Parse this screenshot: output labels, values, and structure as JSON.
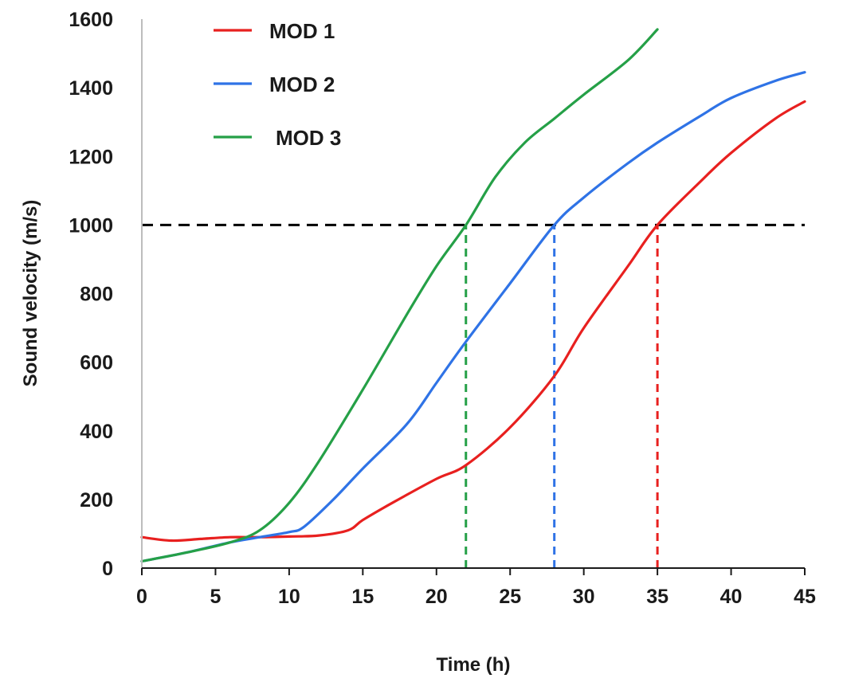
{
  "chart_data": {
    "type": "line",
    "xlabel": "Time (h)",
    "ylabel": "Sound velocity (m/s)",
    "xlim": [
      0,
      45
    ],
    "ylim": [
      0,
      1600
    ],
    "xticks": [
      0,
      5,
      10,
      15,
      20,
      25,
      30,
      35,
      40,
      45
    ],
    "yticks": [
      0,
      200,
      400,
      600,
      800,
      1000,
      1200,
      1400,
      1600
    ],
    "grid": false,
    "legend_position": "top-left",
    "series": [
      {
        "name": "MOD 1",
        "color": "#e8201f",
        "x": [
          0,
          2,
          4,
          6,
          8,
          10,
          12,
          14,
          15,
          17,
          20,
          22,
          25,
          28,
          30,
          33,
          35,
          38,
          40,
          43,
          45
        ],
        "y": [
          90,
          80,
          85,
          90,
          90,
          92,
          95,
          110,
          140,
          190,
          260,
          300,
          410,
          560,
          700,
          880,
          1000,
          1130,
          1210,
          1310,
          1360
        ]
      },
      {
        "name": "MOD 2",
        "color": "#2f73e6",
        "x": [
          0,
          3,
          6,
          8,
          10,
          11,
          13,
          15,
          18,
          20,
          22,
          25,
          28,
          30,
          33,
          35,
          38,
          40,
          43,
          45
        ],
        "y": [
          20,
          45,
          75,
          90,
          105,
          120,
          200,
          290,
          420,
          540,
          660,
          830,
          1000,
          1080,
          1180,
          1240,
          1320,
          1370,
          1420,
          1445
        ]
      },
      {
        "name": "MOD 3",
        "color": "#25a047",
        "x": [
          0,
          3,
          6,
          8,
          10,
          12,
          15,
          18,
          20,
          22,
          24,
          26,
          28,
          30,
          33,
          35
        ],
        "y": [
          20,
          45,
          75,
          110,
          190,
          310,
          520,
          740,
          880,
          1000,
          1140,
          1240,
          1310,
          1380,
          1480,
          1570
        ]
      }
    ],
    "reference_lines": [
      {
        "orientation": "horizontal",
        "y": 1000,
        "x_from": 0,
        "x_to": 45,
        "color": "#000000",
        "style": "dashed"
      },
      {
        "orientation": "vertical",
        "x": 22,
        "y_from": 0,
        "y_to": 1000,
        "color": "#25a047",
        "style": "dashed"
      },
      {
        "orientation": "vertical",
        "x": 28,
        "y_from": 0,
        "y_to": 1000,
        "color": "#2f73e6",
        "style": "dashed"
      },
      {
        "orientation": "vertical",
        "x": 35,
        "y_from": 0,
        "y_to": 1000,
        "color": "#e8201f",
        "style": "dashed"
      }
    ]
  }
}
